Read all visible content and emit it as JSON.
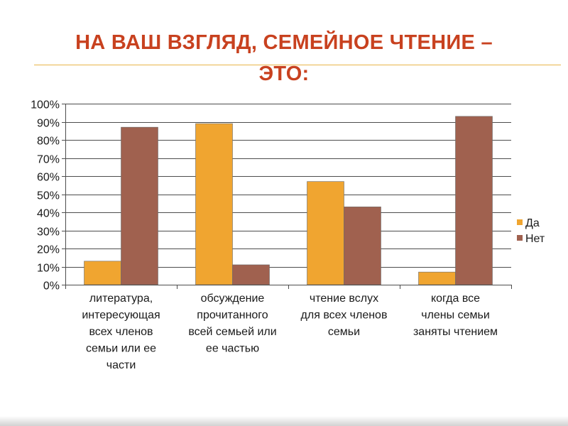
{
  "slide": {
    "title_line1": "НА ВАШ ВЗГЛЯД, СЕМЕЙНОЕ ЧТЕНИЕ –",
    "title_line2": "ЭТО:"
  },
  "colors": {
    "title": "#c8411f",
    "rule": "#e8b64a",
    "series_da": "#f0a530",
    "series_net": "#a0614f",
    "grid": "#4d4d4d",
    "text": "#1a1a1a"
  },
  "chart_data": {
    "type": "bar",
    "title": "",
    "xlabel": "",
    "ylabel": "",
    "ylim": [
      0,
      100
    ],
    "y_tick_values": [
      0,
      10,
      20,
      30,
      40,
      50,
      60,
      70,
      80,
      90,
      100
    ],
    "y_tick_labels": [
      "0%",
      "10%",
      "20%",
      "30%",
      "40%",
      "50%",
      "60%",
      "70%",
      "80%",
      "90%",
      "100%"
    ],
    "grid": true,
    "legend_position": "right",
    "categories": [
      " литература, интересующая всех членов семьи или ее части",
      " обсуждение прочитанного всей семьей или ее частью",
      " чтение вслух для всех членов семьи",
      " когда все члены семьи заняты чтением"
    ],
    "category_lines": [
      [
        " литература,",
        "интересующая",
        "всех членов",
        "семьи или ее",
        "части"
      ],
      [
        " обсуждение",
        "прочитанного",
        "всей семьей или",
        "ее частью"
      ],
      [
        " чтение вслух",
        "для всех членов",
        "семьи"
      ],
      [
        " когда все",
        "члены семьи",
        "заняты чтением"
      ]
    ],
    "series": [
      {
        "name": "Да",
        "color": "#f0a530",
        "values": [
          13,
          89,
          57,
          7
        ]
      },
      {
        "name": "Нет",
        "color": "#a0614f",
        "values": [
          87,
          11,
          43,
          93
        ]
      }
    ]
  }
}
